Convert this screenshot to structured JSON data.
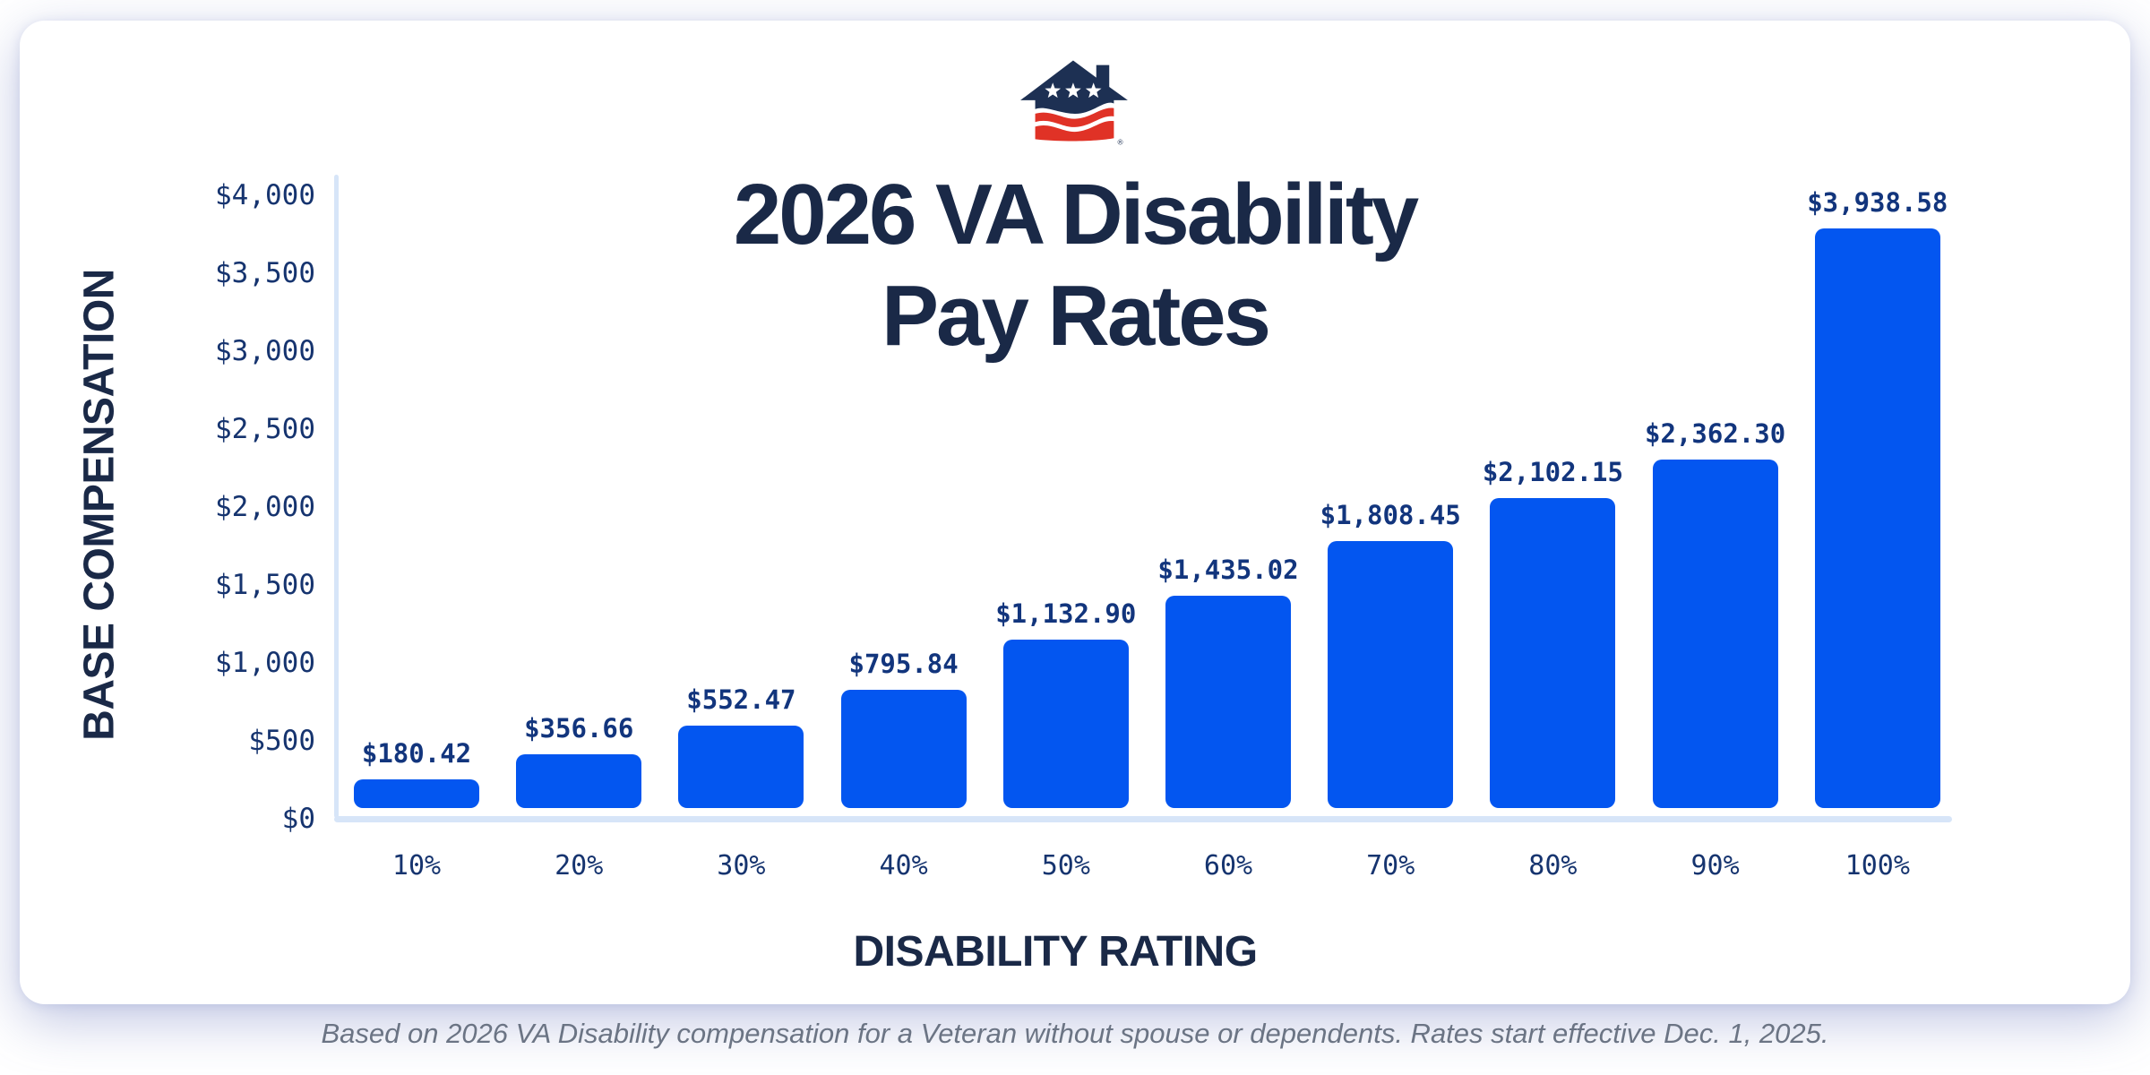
{
  "logo": {
    "icon": "stars-stripes-house-logo",
    "navy": "#1D3053",
    "red": "#E03226",
    "registered_mark": "®"
  },
  "title": {
    "line1": "2026 VA Disability",
    "line2": "Pay Rates",
    "color": "#1A2947"
  },
  "chart_data": {
    "type": "bar",
    "title": "2026 VA Disability Pay Rates",
    "xlabel": "DISABILITY RATING",
    "ylabel": "BASE COMPENSATION",
    "categories": [
      "10%",
      "20%",
      "30%",
      "40%",
      "50%",
      "60%",
      "70%",
      "80%",
      "90%",
      "100%"
    ],
    "values": [
      180.42,
      356.66,
      552.47,
      795.84,
      1132.9,
      1435.02,
      1808.45,
      2102.15,
      2362.3,
      3938.58
    ],
    "value_labels": [
      "$180.42",
      "$356.66",
      "$552.47",
      "$795.84",
      "$1,132.90",
      "$1,435.02",
      "$1,808.45",
      "$2,102.15",
      "$2,362.30",
      "$3,938.58"
    ],
    "y_ticks": [
      "$0",
      "$500",
      "$1,000",
      "$1,500",
      "$2,000",
      "$2,500",
      "$3,000",
      "$3,500",
      "$4,000"
    ],
    "ylim": [
      0,
      4000
    ],
    "y_tick_step": 500,
    "grid": false,
    "legend": "none",
    "bar_color": "#0356F0",
    "axis_line_color": "#D7E5F8",
    "value_label_color": "#12357D",
    "tick_label_color": "#16346F"
  },
  "footer": {
    "text": "Based on 2026 VA Disability compensation for a Veteran without spouse or dependents. Rates start effective Dec. 1, 2025."
  }
}
